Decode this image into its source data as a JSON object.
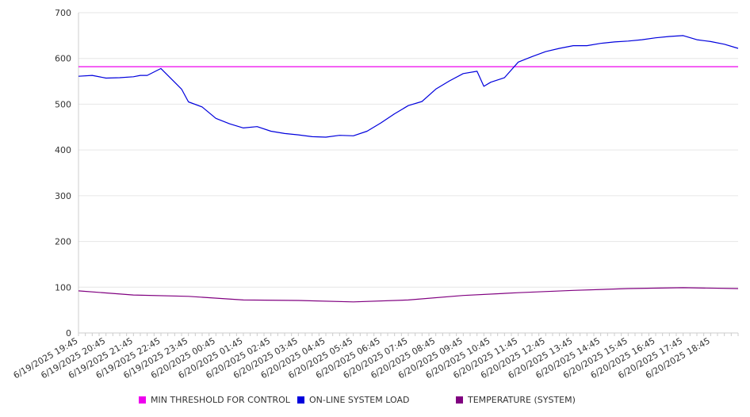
{
  "chart_data": {
    "type": "line",
    "title": "",
    "xlabel": "",
    "ylabel": "",
    "ylim": [
      0,
      700
    ],
    "y_ticks": [
      0,
      100,
      200,
      300,
      400,
      500,
      600,
      700
    ],
    "x_tick_labels": [
      "6/19/2025 19:45",
      "6/19/2025 20:45",
      "6/19/2025 21:45",
      "6/19/2025 22:45",
      "6/19/2025 23:45",
      "6/20/2025 00:45",
      "6/20/2025 01:45",
      "6/20/2025 02:45",
      "6/20/2025 03:45",
      "6/20/2025 04:45",
      "6/20/2025 05:45",
      "6/20/2025 06:45",
      "6/20/2025 07:45",
      "6/20/2025 08:45",
      "6/20/2025 09:45",
      "6/20/2025 10:45",
      "6/20/2025 11:45",
      "6/20/2025 12:45",
      "6/20/2025 13:45",
      "6/20/2025 14:45",
      "6/20/2025 15:45",
      "6/20/2025 16:45",
      "6/20/2025 17:45",
      "6/20/2025 18:45"
    ],
    "x_start": "6/19/2025 19:45",
    "x_end": "6/20/2025 19:45",
    "grid": "horizontal",
    "legend_position": "bottom",
    "series": [
      {
        "name": "MIN THRESHOLD FOR CONTROL",
        "color": "#ee00ee",
        "x": [
          "6/19/2025 19:45",
          "6/20/2025 19:45"
        ],
        "values": [
          582,
          582
        ]
      },
      {
        "name": "ON-LINE SYSTEM LOAD",
        "color": "#0000dd",
        "x": [
          "6/19/2025 19:45",
          "6/19/2025 20:15",
          "6/19/2025 20:45",
          "6/19/2025 21:15",
          "6/19/2025 21:45",
          "6/19/2025 22:00",
          "6/19/2025 22:15",
          "6/19/2025 22:45",
          "6/19/2025 23:15",
          "6/19/2025 23:30",
          "6/19/2025 23:45",
          "6/20/2025 00:15",
          "6/20/2025 00:45",
          "6/20/2025 01:15",
          "6/20/2025 01:45",
          "6/20/2025 02:15",
          "6/20/2025 02:45",
          "6/20/2025 03:15",
          "6/20/2025 03:45",
          "6/20/2025 04:15",
          "6/20/2025 04:45",
          "6/20/2025 05:15",
          "6/20/2025 05:45",
          "6/20/2025 06:15",
          "6/20/2025 06:45",
          "6/20/2025 07:15",
          "6/20/2025 07:45",
          "6/20/2025 08:15",
          "6/20/2025 08:45",
          "6/20/2025 09:15",
          "6/20/2025 09:45",
          "6/20/2025 10:15",
          "6/20/2025 10:30",
          "6/20/2025 10:45",
          "6/20/2025 11:15",
          "6/20/2025 11:45",
          "6/20/2025 12:15",
          "6/20/2025 12:45",
          "6/20/2025 13:15",
          "6/20/2025 13:45",
          "6/20/2025 14:15",
          "6/20/2025 14:45",
          "6/20/2025 15:15",
          "6/20/2025 15:45",
          "6/20/2025 16:15",
          "6/20/2025 16:45",
          "6/20/2025 17:15",
          "6/20/2025 17:45",
          "6/20/2025 18:15",
          "6/20/2025 18:45",
          "6/20/2025 19:15",
          "6/20/2025 19:45"
        ],
        "values": [
          561,
          563,
          557,
          558,
          560,
          563,
          563,
          578,
          548,
          533,
          505,
          494,
          469,
          457,
          448,
          451,
          441,
          436,
          433,
          429,
          428,
          432,
          431,
          441,
          459,
          479,
          497,
          506,
          533,
          551,
          567,
          572,
          539,
          548,
          558,
          592,
          604,
          615,
          622,
          628,
          628,
          633,
          636,
          638,
          641,
          645,
          648,
          650,
          641,
          637,
          631,
          622
        ]
      },
      {
        "name": "TEMPERATURE (SYSTEM)",
        "color": "#800080",
        "x": [
          "6/19/2025 19:45",
          "6/19/2025 21:45",
          "6/19/2025 23:45",
          "6/20/2025 01:45",
          "6/20/2025 03:45",
          "6/20/2025 05:45",
          "6/20/2025 07:45",
          "6/20/2025 09:45",
          "6/20/2025 11:45",
          "6/20/2025 13:45",
          "6/20/2025 15:45",
          "6/20/2025 17:45",
          "6/20/2025 19:45"
        ],
        "values": [
          92,
          83,
          80,
          72,
          71,
          68,
          72,
          82,
          88,
          93,
          97,
          99,
          97
        ]
      }
    ]
  }
}
